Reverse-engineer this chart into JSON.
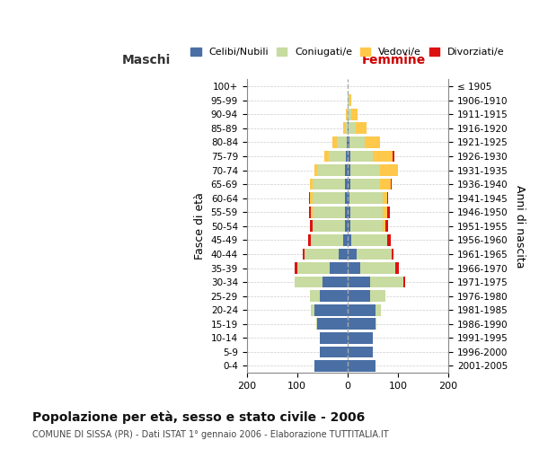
{
  "age_groups": [
    "0-4",
    "5-9",
    "10-14",
    "15-19",
    "20-24",
    "25-29",
    "30-34",
    "35-39",
    "40-44",
    "45-49",
    "50-54",
    "55-59",
    "60-64",
    "65-69",
    "70-74",
    "75-79",
    "80-84",
    "85-89",
    "90-94",
    "95-99",
    "100+"
  ],
  "birth_years": [
    "2001-2005",
    "1996-2000",
    "1991-1995",
    "1986-1990",
    "1981-1985",
    "1976-1980",
    "1971-1975",
    "1966-1970",
    "1961-1965",
    "1956-1960",
    "1951-1955",
    "1946-1950",
    "1941-1945",
    "1936-1940",
    "1931-1935",
    "1926-1930",
    "1921-1925",
    "1916-1920",
    "1911-1915",
    "1906-1910",
    "≤ 1905"
  ],
  "colors": {
    "celibi": "#4a6fa5",
    "coniugati": "#c8dba0",
    "vedovi": "#ffc84a",
    "divorziati": "#dd1111"
  },
  "males": {
    "celibi": [
      65,
      55,
      55,
      60,
      65,
      55,
      50,
      35,
      18,
      8,
      5,
      5,
      5,
      5,
      5,
      3,
      2,
      0,
      0,
      0,
      0
    ],
    "coniugati": [
      0,
      0,
      0,
      2,
      8,
      20,
      55,
      65,
      68,
      65,
      65,
      65,
      65,
      65,
      55,
      35,
      20,
      3,
      2,
      0,
      0
    ],
    "vedovi": [
      0,
      0,
      0,
      0,
      0,
      0,
      0,
      0,
      0,
      0,
      0,
      2,
      4,
      5,
      5,
      8,
      8,
      5,
      1,
      0,
      0
    ],
    "divorziati": [
      0,
      0,
      0,
      0,
      0,
      0,
      0,
      5,
      3,
      6,
      4,
      5,
      2,
      0,
      0,
      0,
      0,
      0,
      0,
      0,
      0
    ]
  },
  "females": {
    "celibi": [
      55,
      50,
      50,
      55,
      55,
      45,
      45,
      25,
      18,
      8,
      5,
      5,
      4,
      5,
      5,
      5,
      4,
      2,
      1,
      1,
      0
    ],
    "coniugati": [
      0,
      0,
      0,
      2,
      12,
      30,
      65,
      70,
      70,
      70,
      65,
      65,
      65,
      60,
      60,
      45,
      30,
      15,
      6,
      2,
      0
    ],
    "vedovi": [
      0,
      0,
      0,
      0,
      0,
      0,
      0,
      0,
      0,
      0,
      5,
      8,
      10,
      20,
      35,
      40,
      30,
      20,
      12,
      5,
      1
    ],
    "divorziati": [
      0,
      0,
      0,
      0,
      0,
      0,
      5,
      6,
      3,
      8,
      6,
      6,
      2,
      2,
      0,
      3,
      0,
      0,
      0,
      0,
      0
    ]
  },
  "xlim": 200,
  "title": "Popolazione per età, sesso e stato civile - 2006",
  "subtitle": "COMUNE DI SISSA (PR) - Dati ISTAT 1° gennaio 2006 - Elaborazione TUTTITALIA.IT",
  "ylabel_left": "Fasce di età",
  "ylabel_right": "Anni di nascita",
  "xlabel_left": "Maschi",
  "xlabel_right": "Femmine",
  "legend_labels": [
    "Celibi/Nubili",
    "Coniugati/e",
    "Vedovi/e",
    "Divorziati/e"
  ],
  "background_color": "#ffffff",
  "grid_color": "#cccccc"
}
